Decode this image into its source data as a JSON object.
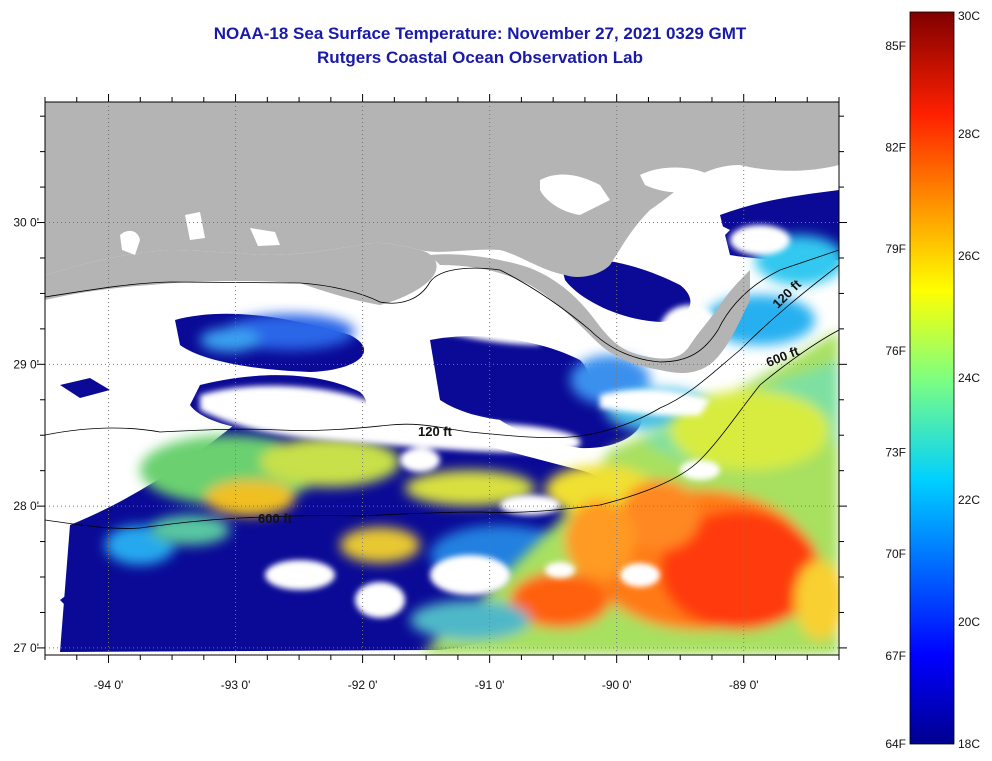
{
  "title": "NOAA-18 Sea Surface Temperature:  November 27, 2021 0329 GMT",
  "subtitle": "Rutgers Coastal Ocean Observation Lab",
  "axes": {
    "lat_labels": [
      "30 0'",
      "29 0'",
      "28 0'",
      "27 0'"
    ],
    "lon_labels": [
      "-94 0'",
      "-93 0'",
      "-92 0'",
      "-91 0'",
      "-90 0'",
      "-89 0'"
    ],
    "lat_range": [
      26.95,
      30.85
    ],
    "lon_range": [
      -94.5,
      -88.25
    ],
    "grid": "dotted"
  },
  "contours": [
    {
      "label": "120 ft",
      "depth": "shelf"
    },
    {
      "label": "600 ft",
      "depth": "slope"
    }
  ],
  "colorbar": {
    "celsius_labels": [
      "30C",
      "28C",
      "26C",
      "24C",
      "22C",
      "20C",
      "18C"
    ],
    "fahrenheit_labels": [
      "85F",
      "82F",
      "79F",
      "76F",
      "73F",
      "70F",
      "67F",
      "64F"
    ],
    "range_c": [
      18,
      30
    ]
  },
  "colors": {
    "land": "#b4b4b4",
    "cloud": "#ffffff",
    "title": "#1a1aa8",
    "cold": "#00008f",
    "warm": "#ff2a00"
  }
}
